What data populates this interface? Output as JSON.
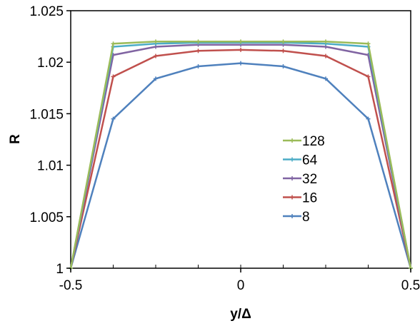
{
  "chart_data": {
    "type": "line",
    "xlabel": "y/Δ",
    "ylabel": "R",
    "xlim": [
      -0.5,
      0.5
    ],
    "ylim": [
      1,
      1.025
    ],
    "x_ticks": [
      -0.5,
      0,
      0.5
    ],
    "x_tick_labels": [
      "-0.5",
      "0",
      "0.5"
    ],
    "y_ticks": [
      1,
      1.005,
      1.01,
      1.015,
      1.02,
      1.025
    ],
    "y_tick_labels": [
      "1",
      "1.005",
      "1.01",
      "1.015",
      "1.02",
      "1.025"
    ],
    "grid": false,
    "legend_position": "right",
    "series": [
      {
        "name": "128",
        "color": "#9bbb59",
        "marker": "plus",
        "x": [
          -0.5,
          -0.375,
          -0.25,
          -0.125,
          0,
          0.125,
          0.25,
          0.375,
          0.5
        ],
        "y": [
          1,
          1.0218,
          1.022,
          1.022,
          1.022,
          1.022,
          1.022,
          1.0218,
          1
        ]
      },
      {
        "name": "64",
        "color": "#4bacc6",
        "marker": "plus",
        "x": [
          -0.5,
          -0.375,
          -0.25,
          -0.125,
          0,
          0.125,
          0.25,
          0.375,
          0.5
        ],
        "y": [
          1,
          1.0215,
          1.0218,
          1.0219,
          1.0219,
          1.0219,
          1.0218,
          1.0215,
          1
        ]
      },
      {
        "name": "32",
        "color": "#8064a2",
        "marker": "plus",
        "x": [
          -0.5,
          -0.375,
          -0.25,
          -0.125,
          0,
          0.125,
          0.25,
          0.375,
          0.5
        ],
        "y": [
          1,
          1.0207,
          1.0215,
          1.0217,
          1.0217,
          1.0217,
          1.0215,
          1.0207,
          1
        ]
      },
      {
        "name": "16",
        "color": "#c0504d",
        "marker": "plus",
        "x": [
          -0.5,
          -0.375,
          -0.25,
          -0.125,
          0,
          0.125,
          0.25,
          0.375,
          0.5
        ],
        "y": [
          1,
          1.0186,
          1.0206,
          1.0211,
          1.0212,
          1.0211,
          1.0206,
          1.0186,
          1
        ]
      },
      {
        "name": "8",
        "color": "#4f81bd",
        "marker": "plus",
        "x": [
          -0.5,
          -0.375,
          -0.25,
          -0.125,
          0,
          0.125,
          0.25,
          0.375,
          0.5
        ],
        "y": [
          1,
          1.0145,
          1.0184,
          1.0196,
          1.0199,
          1.0196,
          1.0184,
          1.0145,
          1
        ]
      }
    ]
  }
}
